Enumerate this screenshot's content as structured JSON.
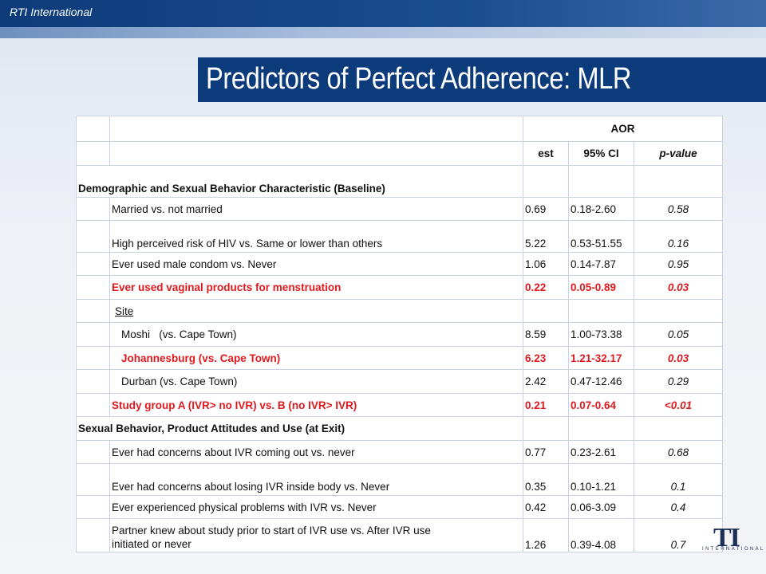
{
  "header": {
    "brand": "RTI International"
  },
  "title": "Predictors of Perfect Adherence: MLR",
  "logo": {
    "mark": "TI",
    "subtext": "INTERNATIONAL"
  },
  "table": {
    "group_header": "AOR",
    "columns": [
      "est",
      "95% CI",
      "p-value"
    ],
    "rows": [
      {
        "label": "Demographic and Sexual Behavior Characteristic (Baseline)",
        "est": "",
        "ci": "",
        "p": ""
      },
      {
        "label": "Married vs. not married",
        "est": "0.69",
        "ci": "0.18-2.60",
        "p": "0.58"
      },
      {
        "label": "High perceived risk of HIV vs. Same or lower than others",
        "est": "5.22",
        "ci": "0.53-51.55",
        "p": "0.16"
      },
      {
        "label": "Ever used male condom vs. Never",
        "est": "1.06",
        "ci": "0.14-7.87",
        "p": "0.95"
      },
      {
        "label": "Ever used vaginal products for menstruation",
        "est": "0.22",
        "ci": "0.05-0.89",
        "p": "0.03"
      },
      {
        "label": "Site",
        "est": "",
        "ci": "",
        "p": ""
      },
      {
        "label": "Moshi   (vs. Cape Town)",
        "est": "8.59",
        "ci": "1.00-73.38",
        "p": "0.05"
      },
      {
        "label": "Johannesburg (vs. Cape Town)",
        "est": "6.23",
        "ci": "1.21-32.17",
        "p": "0.03"
      },
      {
        "label": "Durban (vs. Cape Town)",
        "est": "2.42",
        "ci": "0.47-12.46",
        "p": "0.29"
      },
      {
        "label": "Study group A (IVR> no IVR) vs. B (no IVR> IVR)",
        "est": "0.21",
        "ci": "0.07-0.64",
        "p": "<0.01"
      },
      {
        "label": "Sexual Behavior, Product Attitudes and Use (at Exit)",
        "est": "",
        "ci": "",
        "p": ""
      },
      {
        "label": "Ever had concerns about IVR coming out vs. never",
        "est": "0.77",
        "ci": "0.23-2.61",
        "p": "0.68"
      },
      {
        "label": "Ever had concerns about losing IVR inside body vs. Never",
        "est": "0.35",
        "ci": "0.10-1.21",
        "p": "0.1"
      },
      {
        "label": "Ever experienced physical problems with IVR vs. Never",
        "est": "0.42",
        "ci": "0.06-3.09",
        "p": "0.4"
      },
      {
        "label_line1": "Partner knew about study prior to start of IVR use vs. After IVR use",
        "label_line2": "initiated or never",
        "est": "1.26",
        "ci": "0.39-4.08",
        "p": "0.7"
      }
    ]
  }
}
